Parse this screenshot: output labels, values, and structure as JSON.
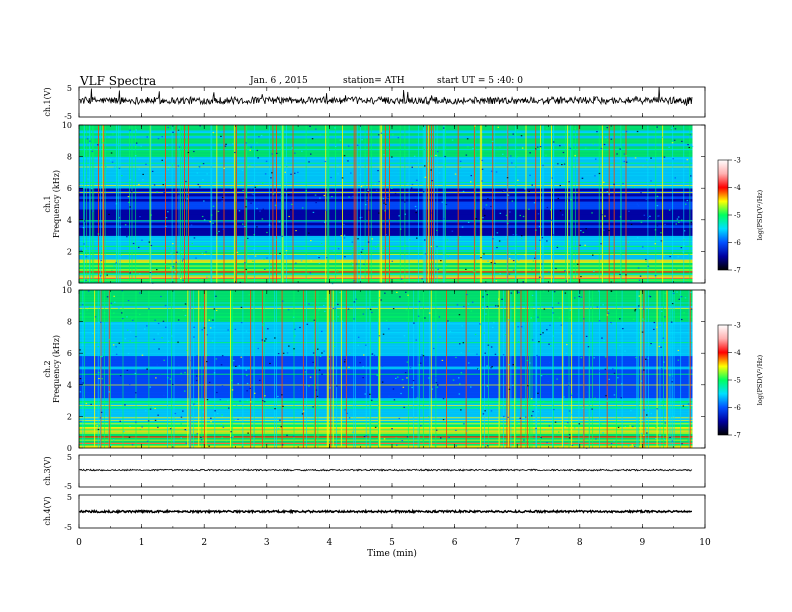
{
  "header": {
    "title": "VLF Spectra",
    "date": "Jan. 6 , 2015",
    "station": "station= ATH",
    "start": "start UT =  5 :40: 0"
  },
  "chart_data": [
    {
      "type": "line",
      "panel": "ch1-waveform",
      "ylabel": "ch.1(V)",
      "ylim": [
        -5,
        5
      ],
      "yticks": [
        "5",
        "-5"
      ],
      "series": [
        {
          "description": "noisy waveform around +0.5 V with spikes",
          "baseline": 0.5,
          "noise_amplitude": 1.2
        }
      ]
    },
    {
      "type": "heatmap",
      "panel": "ch1-spectrogram",
      "ylabel_line1": "ch.1",
      "ylabel_line2": "Frequency  (kHz)",
      "ylim": [
        0,
        10
      ],
      "yticks": [
        "0",
        "2",
        "4",
        "6",
        "8",
        "10"
      ],
      "colorbar": {
        "label": "log(PSD(V²/Hz)",
        "range": [
          -7,
          -3
        ],
        "ticks": [
          "-3",
          "-4",
          "-5",
          "-6",
          "-7"
        ],
        "colors": [
          "#000000",
          "#0000a0",
          "#0050ff",
          "#00e0ff",
          "#00ff60",
          "#ffff00",
          "#ff0000",
          "#ffb0b0",
          "#ffffff"
        ]
      }
    },
    {
      "type": "heatmap",
      "panel": "ch2-spectrogram",
      "ylabel_line1": "ch.2",
      "ylabel_line2": "Frequency  (kHz)",
      "ylim": [
        0,
        10
      ],
      "yticks": [
        "0",
        "2",
        "4",
        "6",
        "8",
        "10"
      ],
      "colorbar": {
        "label": "log(PSD(V²/Hz)",
        "range": [
          -7,
          -3
        ],
        "ticks": [
          "-3",
          "-4",
          "-5",
          "-6",
          "-7"
        ],
        "colors": [
          "#000000",
          "#0000a0",
          "#0050ff",
          "#00e0ff",
          "#00ff60",
          "#ffff00",
          "#ff0000",
          "#ffb0b0",
          "#ffffff"
        ]
      }
    },
    {
      "type": "line",
      "panel": "ch3-waveform",
      "ylabel": "ch.3(V)",
      "ylim": [
        -5,
        5
      ],
      "yticks": [
        "5",
        "-5"
      ],
      "series": [
        {
          "description": "low-noise waveform around +0.3 V",
          "baseline": 0.3,
          "noise_amplitude": 0.25
        }
      ]
    },
    {
      "type": "line",
      "panel": "ch4-waveform",
      "ylabel": "ch.4(V)",
      "ylim": [
        -5,
        5
      ],
      "yticks": [
        "5",
        "-5"
      ],
      "series": [
        {
          "description": "dense thick trace near 0 V",
          "baseline": 0.0,
          "noise_amplitude": 0.3
        }
      ]
    }
  ],
  "xaxis": {
    "label": "Time  (min)",
    "range": [
      0,
      10
    ],
    "data_end": 9.8,
    "ticks": [
      "0",
      "1",
      "2",
      "3",
      "4",
      "5",
      "6",
      "7",
      "8",
      "9",
      "10"
    ]
  }
}
